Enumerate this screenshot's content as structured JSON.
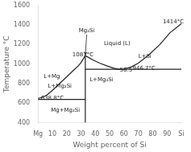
{
  "chart_data": {
    "type": "line",
    "xlabel": "Weight percent of Si",
    "ylabel": "Temperature °C",
    "color": "#222222",
    "grid": false,
    "xlim": [
      0,
      100
    ],
    "ylim": [
      400,
      1600
    ],
    "xticks": [
      {
        "value": 0,
        "label": "Mg"
      },
      10,
      20,
      30,
      40,
      50,
      60,
      70,
      80,
      90,
      {
        "value": 100,
        "label": "Si"
      }
    ],
    "yticks": [
      400,
      600,
      800,
      1000,
      1200,
      1400,
      1600
    ],
    "series": [
      {
        "x": [
          0,
          1,
          3,
          6,
          10,
          15,
          20,
          25,
          28,
          30,
          33
        ],
        "values": [
          651,
          652,
          660,
          680,
          730,
          800,
          870,
          940,
          980,
          1015,
          1087
        ]
      },
      {
        "x": [
          33,
          38,
          43,
          48,
          53,
          56.5,
          60,
          65,
          70,
          77,
          85,
          92,
          100
        ],
        "values": [
          1087,
          1045,
          1010,
          982,
          958,
          946.7,
          950,
          970,
          1010,
          1090,
          1200,
          1320,
          1414
        ]
      },
      {
        "x": [
          0,
          33
        ],
        "values": [
          638.8,
          638.8
        ]
      },
      {
        "x": [
          33,
          100
        ],
        "values": [
          946.7,
          946.7
        ]
      },
      {
        "x": [
          33,
          33
        ],
        "values": [
          400,
          1087
        ]
      }
    ],
    "annotations": [
      {
        "text": "L+Mg",
        "x": 4,
        "y": 870
      },
      {
        "text": "L+Mg₂Si",
        "x": 7,
        "y": 770
      },
      {
        "text": "L+Mg₂Si",
        "x": 36,
        "y": 840
      },
      {
        "text": "Liquid (L)",
        "x": 46,
        "y": 1210
      },
      {
        "text": "L+Si",
        "x": 70,
        "y": 1080
      },
      {
        "text": "Mg+Mg₂Si",
        "x": 9,
        "y": 530
      },
      {
        "text": "638.8°C",
        "x": 2,
        "y": 648
      },
      {
        "text": "1087°C",
        "x": 24,
        "y": 1097
      },
      {
        "text": "946.7°C",
        "x": 66,
        "y": 956
      },
      {
        "text": "1414°C",
        "x": 87,
        "y": 1430
      },
      {
        "text": "56.5",
        "x": 57,
        "y": 935
      },
      {
        "text": "Mg₂Si",
        "x": 34,
        "y": 1310,
        "arrow_to": [
          33,
          1095
        ]
      }
    ]
  }
}
